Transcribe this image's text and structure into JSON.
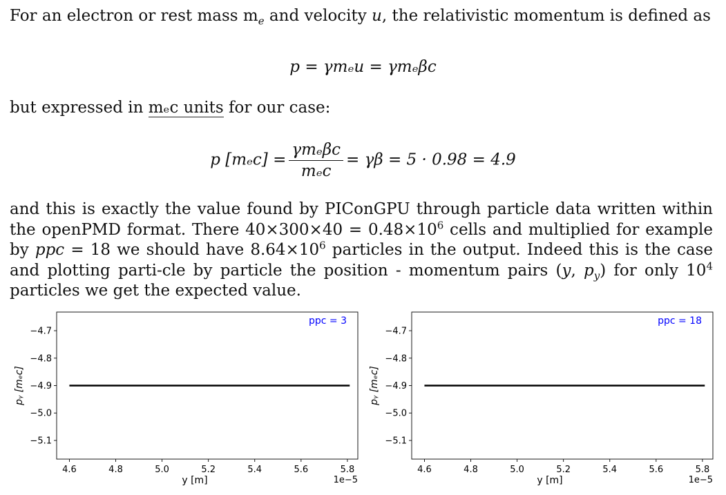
{
  "text": {
    "intro": "For an electron or rest mass m",
    "intro_sub": "e",
    "intro_mid": " and velocity ",
    "intro_var": "u",
    "intro_end": ", the relativistic momentum is defined as",
    "eq1": "p = γmₑu = γmₑβc",
    "units_pre": "but expressed in ",
    "units_link": "mₑc units",
    "units_post": " for our case:",
    "eq2_lhs": "p [mₑc] =",
    "eq2_num": "γmₑβc",
    "eq2_den": "mₑc",
    "eq2_rhs": "= γβ = 5 · 0.98 = 4.9",
    "para3_a": "and this is exactly the value found by PIConGPU through particle data written within the openPMD format.  There 40×300×40 = 0.48×10",
    "para3_sup1": "6",
    "para3_b": " cells and multiplied for example by ",
    "para3_ppc": "ppc",
    "para3_c": " = 18 we should have 8.64×10",
    "para3_sup2": "6",
    "para3_d": " particles in the output. Indeed this is the case and plotting parti-cle by particle the position - momentum pairs (",
    "para3_y": "y",
    "para3_e": ", ",
    "para3_py": "p",
    "para3_py_sub": "y",
    "para3_f": ") for only 10",
    "para3_sup3": "4",
    "para3_g": " particles we get the expected value."
  },
  "chart_data": [
    {
      "type": "line",
      "annotation": "ppc = 3",
      "xlabel": "y [m]",
      "ylabel": "pᵧ [mₑc]",
      "x_offset_label": "1e−5",
      "xlim": [
        4.545,
        5.845
      ],
      "ylim": [
        -5.168,
        -4.632
      ],
      "xticks": [
        "4.6",
        "4.8",
        "5.0",
        "5.2",
        "5.4",
        "5.6",
        "5.8"
      ],
      "xtick_values": [
        4.6,
        4.8,
        5.0,
        5.2,
        5.4,
        5.6,
        5.8
      ],
      "yticks": [
        "−4.7",
        "−4.8",
        "−4.9",
        "−5.0",
        "−5.1"
      ],
      "ytick_values": [
        -4.7,
        -4.8,
        -4.9,
        -5.0,
        -5.1
      ],
      "series": [
        {
          "x": [
            4.6,
            5.81
          ],
          "y": [
            -4.9,
            -4.9
          ]
        }
      ],
      "colors": {
        "annotation": "#0000ff",
        "line": "#000000"
      }
    },
    {
      "type": "line",
      "annotation": "ppc = 18",
      "xlabel": "y [m]",
      "ylabel": "pᵧ [mₑc]",
      "x_offset_label": "1e−5",
      "xlim": [
        4.545,
        5.845
      ],
      "ylim": [
        -5.168,
        -4.632
      ],
      "xticks": [
        "4.6",
        "4.8",
        "5.0",
        "5.2",
        "5.4",
        "5.6",
        "5.8"
      ],
      "xtick_values": [
        4.6,
        4.8,
        5.0,
        5.2,
        5.4,
        5.6,
        5.8
      ],
      "yticks": [
        "−4.7",
        "−4.8",
        "−4.9",
        "−5.0",
        "−5.1"
      ],
      "ytick_values": [
        -4.7,
        -4.8,
        -4.9,
        -5.0,
        -5.1
      ],
      "series": [
        {
          "x": [
            4.6,
            5.81
          ],
          "y": [
            -4.9,
            -4.9
          ]
        }
      ],
      "colors": {
        "annotation": "#0000ff",
        "line": "#000000"
      }
    }
  ]
}
